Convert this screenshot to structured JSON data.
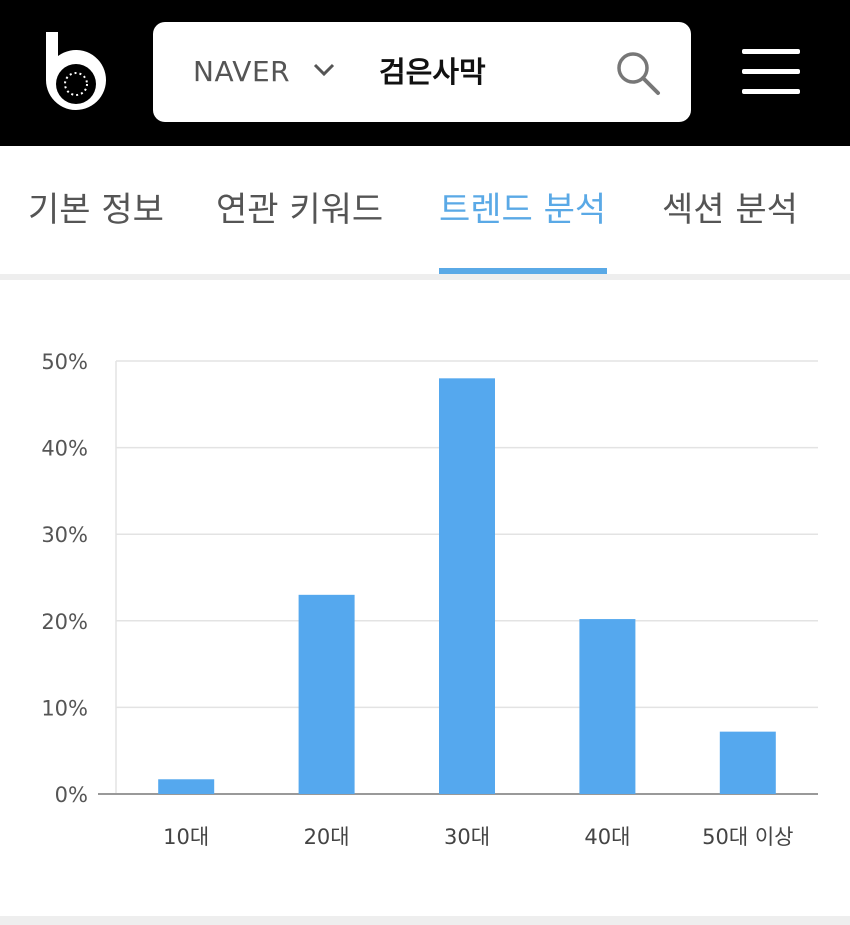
{
  "header": {
    "logo_icon": "b-logo-icon",
    "engine_label": "NAVER",
    "dropdown_icon": "chevron-down-icon",
    "search_query": "검은사막",
    "search_icon": "search-icon",
    "menu_icon": "hamburger-menu-icon"
  },
  "tabs": [
    {
      "label": "기본 정보",
      "active": false
    },
    {
      "label": "연관 키워드",
      "active": false
    },
    {
      "label": "트렌드 분석",
      "active": true
    },
    {
      "label": "섹션 분석",
      "active": false
    }
  ],
  "colors": {
    "accent": "#5aa9e6",
    "bar": "#55a8ee",
    "header_bg": "#000000"
  },
  "chart_data": {
    "type": "bar",
    "categories": [
      "10대",
      "20대",
      "30대",
      "40대",
      "50대 이상"
    ],
    "values": [
      1.7,
      23,
      48,
      20.2,
      7.2
    ],
    "ylim": [
      0,
      50
    ],
    "yticks": [
      "0%",
      "10%",
      "20%",
      "30%",
      "40%",
      "50%"
    ],
    "ytick_values": [
      0,
      10,
      20,
      30,
      40,
      50
    ],
    "grid": true,
    "legend": "none"
  }
}
